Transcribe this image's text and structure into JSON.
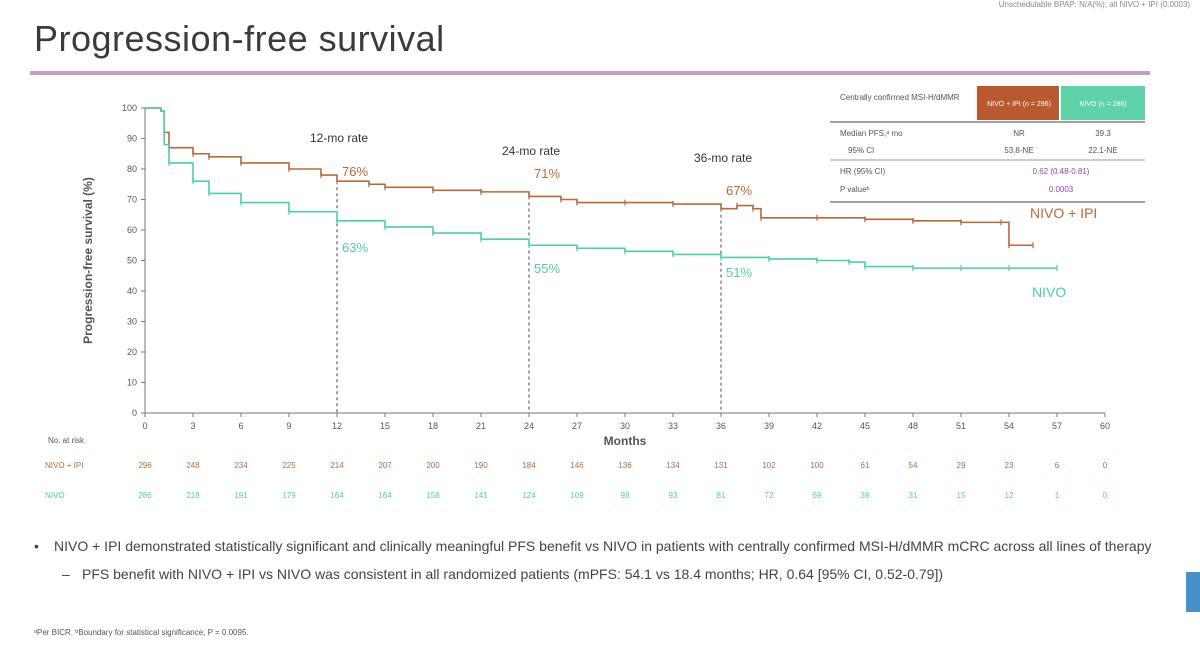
{
  "top_note": "Unschedulable BPAP: N/A(%); all NIVO + IPI (0.0003)",
  "title": "Progression-free survival",
  "colors": {
    "nivo_ipi": "#b8693a",
    "nivo": "#4fcfa6",
    "header_nivo_ipi": "#b85a2e",
    "header_nivo": "#5ed2a8",
    "stat": "#9b3fb8"
  },
  "chart_data": {
    "type": "line",
    "xlabel": "Months",
    "ylabel": "Progression-free survival (%)",
    "xlim": [
      0,
      60
    ],
    "ylim": [
      0,
      100
    ],
    "x_ticks": [
      0,
      3,
      6,
      9,
      12,
      15,
      18,
      21,
      24,
      27,
      30,
      33,
      36,
      39,
      42,
      45,
      48,
      51,
      54,
      57,
      60
    ],
    "y_ticks": [
      0,
      10,
      20,
      30,
      40,
      50,
      60,
      70,
      80,
      90,
      100
    ],
    "series": [
      {
        "name": "NIVO + IPI",
        "color": "#b8693a",
        "points": [
          [
            0,
            100
          ],
          [
            1,
            99
          ],
          [
            1.2,
            92
          ],
          [
            1.5,
            87
          ],
          [
            3,
            85
          ],
          [
            4,
            84
          ],
          [
            6,
            82
          ],
          [
            9,
            80
          ],
          [
            11,
            78
          ],
          [
            12,
            76
          ],
          [
            14,
            75
          ],
          [
            15,
            74
          ],
          [
            18,
            73
          ],
          [
            21,
            72.5
          ],
          [
            24,
            71
          ],
          [
            26,
            70
          ],
          [
            27,
            69
          ],
          [
            30,
            69
          ],
          [
            33,
            68.5
          ],
          [
            36,
            67
          ],
          [
            37,
            68
          ],
          [
            38,
            67
          ],
          [
            38.5,
            64
          ],
          [
            42,
            64
          ],
          [
            45,
            63.5
          ],
          [
            48,
            63
          ],
          [
            51,
            62.5
          ],
          [
            53.5,
            62.5
          ],
          [
            54,
            55
          ],
          [
            55.5,
            55
          ]
        ]
      },
      {
        "name": "NIVO",
        "color": "#4fcfa6",
        "points": [
          [
            0,
            100
          ],
          [
            1,
            99
          ],
          [
            1.2,
            88
          ],
          [
            1.5,
            82
          ],
          [
            3,
            76
          ],
          [
            4,
            72
          ],
          [
            6,
            69
          ],
          [
            9,
            66
          ],
          [
            12,
            63
          ],
          [
            15,
            61
          ],
          [
            18,
            59
          ],
          [
            21,
            57
          ],
          [
            24,
            55
          ],
          [
            27,
            54
          ],
          [
            30,
            53
          ],
          [
            33,
            52
          ],
          [
            36,
            51
          ],
          [
            39,
            50.5
          ],
          [
            42,
            50
          ],
          [
            44,
            49.5
          ],
          [
            45,
            48
          ],
          [
            48,
            47.5
          ],
          [
            51,
            47.5
          ],
          [
            54,
            47.5
          ],
          [
            57,
            47.5
          ]
        ]
      }
    ],
    "rate_markers": [
      {
        "label": "12-mo rate",
        "x": 12,
        "nivo_ipi": "76%",
        "nivo": "63%"
      },
      {
        "label": "24-mo rate",
        "x": 24,
        "nivo_ipi": "71%",
        "nivo": "55%"
      },
      {
        "label": "36-mo rate",
        "x": 36,
        "nivo_ipi": "67%",
        "nivo": "51%"
      }
    ],
    "curve_labels": {
      "nivo_ipi": "NIVO + IPI",
      "nivo": "NIVO"
    }
  },
  "stats_table": {
    "header_label": "Centrally confirmed MSI-H/dMMR",
    "col_nivo_ipi": "NIVO + IPI (n = 296)",
    "col_nivo": "NIVO (n = 286)",
    "rows": [
      {
        "label": "Median PFS,ᵃ mo",
        "nivo_ipi": "NR",
        "nivo": "39.3"
      },
      {
        "label": "95% CI",
        "nivo_ipi": "53.8-NE",
        "nivo": "22.1-NE"
      },
      {
        "label": "HR (95% CI)",
        "merged": "0.62 (0.48-0.81)"
      },
      {
        "label": "P valueᵇ",
        "merged": "0.0003"
      }
    ]
  },
  "at_risk": {
    "label": "No. at risk",
    "rows": [
      {
        "name": "NIVO + IPI",
        "values": [
          "296",
          "248",
          "234",
          "225",
          "214",
          "207",
          "200",
          "190",
          "184",
          "146",
          "136",
          "134",
          "131",
          "102",
          "100",
          "61",
          "54",
          "29",
          "23",
          "6",
          "0"
        ]
      },
      {
        "name": "NIVO",
        "values": [
          "286",
          "218",
          "191",
          "179",
          "164",
          "164",
          "158",
          "141",
          "124",
          "109",
          "98",
          "93",
          "81",
          "72",
          "69",
          "39",
          "31",
          "15",
          "12",
          "1",
          "0"
        ]
      }
    ]
  },
  "bullets": {
    "main": "NIVO + IPI demonstrated statistically significant and clinically meaningful PFS benefit vs NIVO in patients with centrally confirmed MSI-H/dMMR mCRC across all lines of therapy",
    "sub": "PFS benefit with NIVO + IPI vs NIVO was consistent in all randomized patients (mPFS: 54.1 vs 18.4 months; HR, 0.64 [95% CI, 0.52-0.79])"
  },
  "footnote": "ᵃPer BICR. ᵇBoundary for statistical significance, P = 0.0095."
}
